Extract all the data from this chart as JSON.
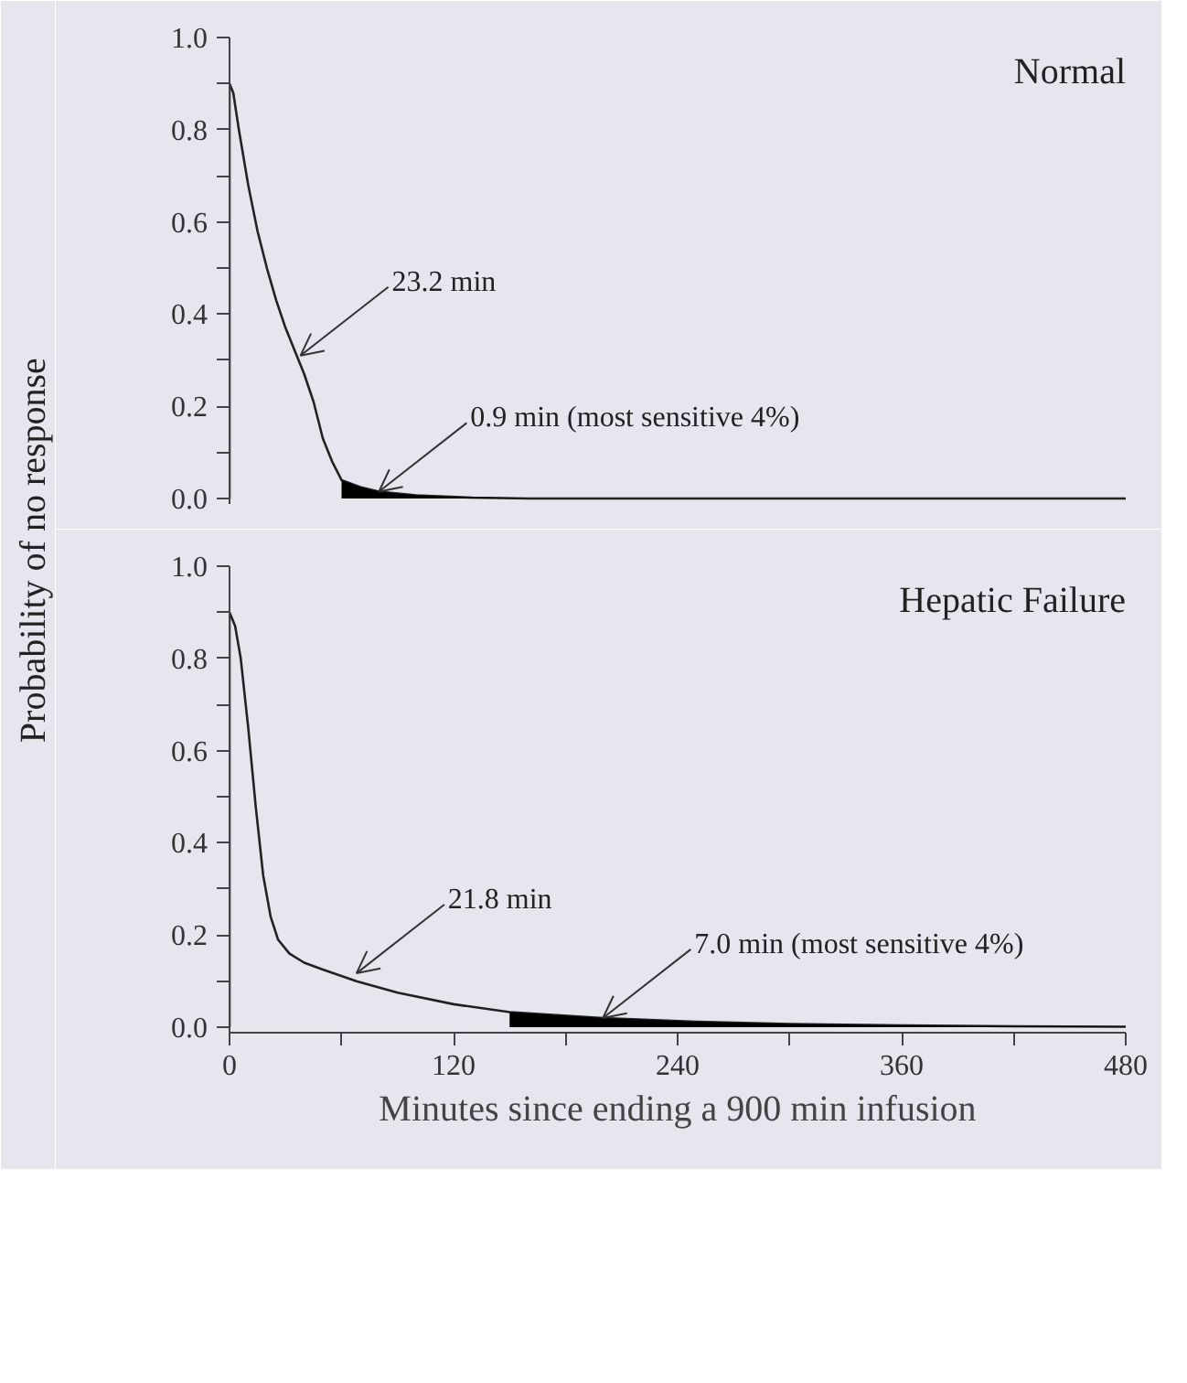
{
  "chart_data": [
    {
      "type": "line",
      "title": "Normal",
      "ylabel": "Probability of no response",
      "xlim": [
        0,
        480
      ],
      "ylim": [
        0,
        1.0
      ],
      "tick_labels": "y",
      "grid": false,
      "yticks": [
        {
          "value": 0,
          "label": "0.0"
        },
        {
          "value": 0.1,
          "label": null
        },
        {
          "value": 0.2,
          "label": "0.2"
        },
        {
          "value": 0.3,
          "label": null
        },
        {
          "value": 0.4,
          "label": "0.4"
        },
        {
          "value": 0.5,
          "label": null
        },
        {
          "value": 0.6,
          "label": "0.6"
        },
        {
          "value": 0.7,
          "label": null
        },
        {
          "value": 0.8,
          "label": "0.8"
        },
        {
          "value": 0.9,
          "label": null
        },
        {
          "value": 1.0,
          "label": "1.0"
        }
      ],
      "series": [
        {
          "color": "#222222",
          "x": [
            0,
            0,
            2,
            5,
            10,
            15,
            20,
            25,
            30,
            35,
            40,
            45,
            50,
            55,
            60,
            70,
            80,
            100,
            130,
            160,
            480
          ],
          "values": [
            0,
            0.9,
            0.88,
            0.8,
            0.68,
            0.58,
            0.5,
            0.43,
            0.37,
            0.32,
            0.27,
            0.21,
            0.13,
            0.08,
            0.04,
            0.025,
            0.015,
            0.007,
            0.002,
            0,
            0
          ]
        },
        {
          "type": "area",
          "color": "#000000",
          "x": [
            60,
            70,
            80,
            100,
            130,
            160
          ],
          "values": [
            0.04,
            0.025,
            0.015,
            0.007,
            0.002,
            0
          ]
        }
      ],
      "annotations": [
        {
          "text": "23.2 min",
          "x": 38,
          "y": 0.31
        },
        {
          "text": "0.9 min (most sensitive 4%)",
          "x": 80,
          "y": 0.015
        }
      ]
    },
    {
      "type": "line",
      "title": "Hepatic Failure",
      "xlabel": "Minutes since ending a 900 min infusion",
      "xlim": [
        0,
        480
      ],
      "ylim": [
        0,
        1.0
      ],
      "grid": false,
      "xticks": [
        0,
        {
          "value": 60,
          "label": null
        },
        120,
        {
          "value": 180,
          "label": null
        },
        240,
        {
          "value": 300,
          "label": null
        },
        360,
        {
          "value": 420,
          "label": null
        },
        480
      ],
      "yticks": [
        {
          "value": 0,
          "label": "0.0"
        },
        {
          "value": 0.1,
          "label": null
        },
        {
          "value": 0.2,
          "label": "0.2"
        },
        {
          "value": 0.3,
          "label": null
        },
        {
          "value": 0.4,
          "label": "0.4"
        },
        {
          "value": 0.5,
          "label": null
        },
        {
          "value": 0.6,
          "label": "0.6"
        },
        {
          "value": 0.7,
          "label": null
        },
        {
          "value": 0.8,
          "label": "0.8"
        },
        {
          "value": 0.9,
          "label": null
        },
        {
          "value": 1.0,
          "label": "1.0"
        }
      ],
      "series": [
        {
          "color": "#222222",
          "x": [
            0,
            0,
            3,
            6,
            10,
            14,
            18,
            22,
            26,
            32,
            40,
            50,
            68,
            90,
            120,
            150,
            200,
            250,
            300,
            360,
            420,
            480
          ],
          "values": [
            0,
            0.9,
            0.87,
            0.8,
            0.65,
            0.48,
            0.33,
            0.24,
            0.19,
            0.16,
            0.14,
            0.125,
            0.1,
            0.075,
            0.05,
            0.033,
            0.02,
            0.012,
            0.007,
            0.004,
            0.002,
            0.001
          ]
        },
        {
          "type": "area",
          "color": "#000000",
          "x": [
            150,
            200,
            250,
            300,
            360,
            420,
            480
          ],
          "values": [
            0.033,
            0.02,
            0.012,
            0.007,
            0.004,
            0.002,
            0.001
          ]
        }
      ],
      "annotations": [
        {
          "text": "21.8 min",
          "x": 68,
          "y": 0.117
        },
        {
          "text": "7.0 min (most sensitive 4%)",
          "x": 200,
          "y": 0.02
        }
      ]
    }
  ]
}
